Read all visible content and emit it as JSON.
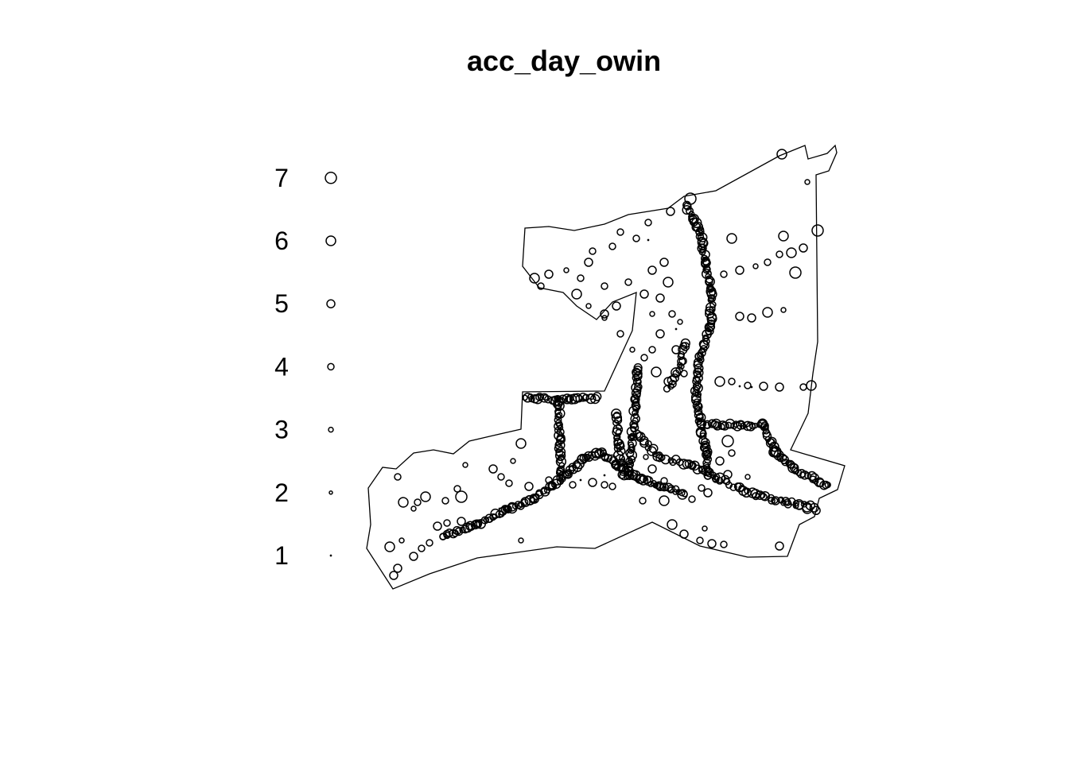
{
  "title": "acc_day_owin",
  "colors": {
    "ink": "#000000",
    "background": "#ffffff"
  },
  "chart_data": {
    "type": "scatter",
    "subtype": "spatial marked point pattern (spatstat ppp plot)",
    "title": "acc_day_owin",
    "window": "polygon",
    "mark_legend": {
      "placement": "left",
      "marks": [
        1,
        2,
        3,
        4,
        5,
        6,
        7
      ],
      "labels": [
        "1",
        "2",
        "3",
        "4",
        "5",
        "6",
        "7"
      ]
    },
    "axes": "none",
    "grid": false
  }
}
